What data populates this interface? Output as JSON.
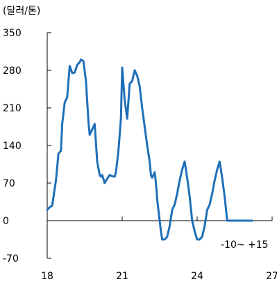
{
  "chart_data": {
    "type": "line",
    "unit_label": "(달러/톤)",
    "annotation": "-10~ +15",
    "xlim": [
      18,
      27
    ],
    "ylim": [
      -70,
      350
    ],
    "x_ticks": [
      18,
      21,
      24,
      27
    ],
    "y_ticks": [
      350,
      280,
      210,
      140,
      70,
      0,
      -70
    ],
    "grid": false,
    "line_color": "#1f6fb8",
    "series": [
      {
        "x": [
          18.0,
          18.1,
          18.2,
          18.35,
          18.45,
          18.55,
          18.6,
          18.7,
          18.8,
          18.9,
          19.0,
          19.1,
          19.2,
          19.3,
          19.35,
          19.45,
          19.55,
          19.65,
          19.7,
          19.8,
          19.9,
          20.0,
          20.1,
          20.15,
          20.2,
          20.3,
          20.4,
          20.5,
          20.6,
          20.7,
          20.75,
          20.85,
          20.95,
          21.0,
          21.1,
          21.2,
          21.3,
          21.4,
          21.5,
          21.6,
          21.7,
          21.8,
          21.9,
          22.0,
          22.1,
          22.15,
          22.2,
          22.25,
          22.3,
          22.35,
          22.4,
          22.45,
          22.5,
          22.55,
          22.6,
          22.7,
          22.8,
          22.9,
          23.0,
          23.1,
          23.2,
          23.3,
          23.4,
          23.5,
          23.6,
          23.7,
          23.8,
          23.9,
          24.0,
          24.1,
          24.2,
          24.3,
          24.4,
          24.5,
          24.6,
          24.7,
          24.8,
          24.9,
          25.0,
          25.1,
          25.2,
          25.3,
          25.4,
          25.5,
          25.6,
          25.7,
          25.8,
          25.9,
          26.0,
          26.1,
          26.2
        ],
        "y": [
          20,
          25,
          28,
          75,
          125,
          130,
          180,
          220,
          230,
          288,
          275,
          276,
          290,
          295,
          300,
          297,
          260,
          185,
          160,
          170,
          180,
          110,
          85,
          82,
          85,
          70,
          78,
          85,
          83,
          82,
          90,
          130,
          190,
          285,
          225,
          190,
          255,
          260,
          280,
          270,
          250,
          210,
          175,
          140,
          110,
          85,
          80,
          85,
          90,
          70,
          40,
          20,
          0,
          -20,
          -35,
          -35,
          -30,
          -10,
          20,
          30,
          50,
          75,
          95,
          110,
          80,
          45,
          0,
          -20,
          -35,
          -35,
          -30,
          -10,
          20,
          30,
          50,
          75,
          95,
          110,
          80,
          45,
          0,
          0,
          0,
          0,
          0,
          0,
          0,
          0,
          0,
          0,
          0
        ]
      }
    ]
  }
}
